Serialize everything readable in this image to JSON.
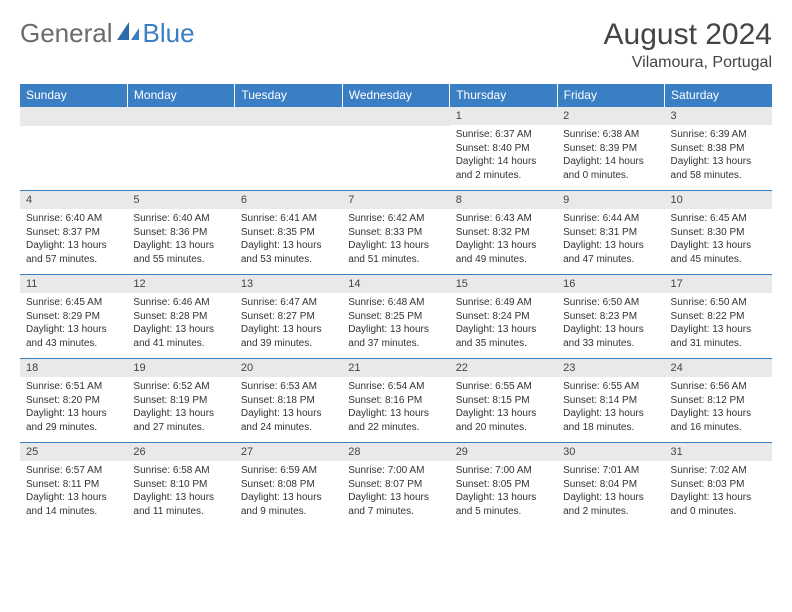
{
  "logo": {
    "general": "General",
    "blue": "Blue"
  },
  "title": "August 2024",
  "location": "Vilamoura, Portugal",
  "weekdays": [
    "Sunday",
    "Monday",
    "Tuesday",
    "Wednesday",
    "Thursday",
    "Friday",
    "Saturday"
  ],
  "colors": {
    "header_bg": "#3a7fc4",
    "header_fg": "#ffffff",
    "daynum_bg": "#e9e9e9"
  },
  "weeks": [
    [
      {
        "n": "",
        "sr": "",
        "ss": "",
        "dl": ""
      },
      {
        "n": "",
        "sr": "",
        "ss": "",
        "dl": ""
      },
      {
        "n": "",
        "sr": "",
        "ss": "",
        "dl": ""
      },
      {
        "n": "",
        "sr": "",
        "ss": "",
        "dl": ""
      },
      {
        "n": "1",
        "sr": "Sunrise: 6:37 AM",
        "ss": "Sunset: 8:40 PM",
        "dl": "Daylight: 14 hours and 2 minutes."
      },
      {
        "n": "2",
        "sr": "Sunrise: 6:38 AM",
        "ss": "Sunset: 8:39 PM",
        "dl": "Daylight: 14 hours and 0 minutes."
      },
      {
        "n": "3",
        "sr": "Sunrise: 6:39 AM",
        "ss": "Sunset: 8:38 PM",
        "dl": "Daylight: 13 hours and 58 minutes."
      }
    ],
    [
      {
        "n": "4",
        "sr": "Sunrise: 6:40 AM",
        "ss": "Sunset: 8:37 PM",
        "dl": "Daylight: 13 hours and 57 minutes."
      },
      {
        "n": "5",
        "sr": "Sunrise: 6:40 AM",
        "ss": "Sunset: 8:36 PM",
        "dl": "Daylight: 13 hours and 55 minutes."
      },
      {
        "n": "6",
        "sr": "Sunrise: 6:41 AM",
        "ss": "Sunset: 8:35 PM",
        "dl": "Daylight: 13 hours and 53 minutes."
      },
      {
        "n": "7",
        "sr": "Sunrise: 6:42 AM",
        "ss": "Sunset: 8:33 PM",
        "dl": "Daylight: 13 hours and 51 minutes."
      },
      {
        "n": "8",
        "sr": "Sunrise: 6:43 AM",
        "ss": "Sunset: 8:32 PM",
        "dl": "Daylight: 13 hours and 49 minutes."
      },
      {
        "n": "9",
        "sr": "Sunrise: 6:44 AM",
        "ss": "Sunset: 8:31 PM",
        "dl": "Daylight: 13 hours and 47 minutes."
      },
      {
        "n": "10",
        "sr": "Sunrise: 6:45 AM",
        "ss": "Sunset: 8:30 PM",
        "dl": "Daylight: 13 hours and 45 minutes."
      }
    ],
    [
      {
        "n": "11",
        "sr": "Sunrise: 6:45 AM",
        "ss": "Sunset: 8:29 PM",
        "dl": "Daylight: 13 hours and 43 minutes."
      },
      {
        "n": "12",
        "sr": "Sunrise: 6:46 AM",
        "ss": "Sunset: 8:28 PM",
        "dl": "Daylight: 13 hours and 41 minutes."
      },
      {
        "n": "13",
        "sr": "Sunrise: 6:47 AM",
        "ss": "Sunset: 8:27 PM",
        "dl": "Daylight: 13 hours and 39 minutes."
      },
      {
        "n": "14",
        "sr": "Sunrise: 6:48 AM",
        "ss": "Sunset: 8:25 PM",
        "dl": "Daylight: 13 hours and 37 minutes."
      },
      {
        "n": "15",
        "sr": "Sunrise: 6:49 AM",
        "ss": "Sunset: 8:24 PM",
        "dl": "Daylight: 13 hours and 35 minutes."
      },
      {
        "n": "16",
        "sr": "Sunrise: 6:50 AM",
        "ss": "Sunset: 8:23 PM",
        "dl": "Daylight: 13 hours and 33 minutes."
      },
      {
        "n": "17",
        "sr": "Sunrise: 6:50 AM",
        "ss": "Sunset: 8:22 PM",
        "dl": "Daylight: 13 hours and 31 minutes."
      }
    ],
    [
      {
        "n": "18",
        "sr": "Sunrise: 6:51 AM",
        "ss": "Sunset: 8:20 PM",
        "dl": "Daylight: 13 hours and 29 minutes."
      },
      {
        "n": "19",
        "sr": "Sunrise: 6:52 AM",
        "ss": "Sunset: 8:19 PM",
        "dl": "Daylight: 13 hours and 27 minutes."
      },
      {
        "n": "20",
        "sr": "Sunrise: 6:53 AM",
        "ss": "Sunset: 8:18 PM",
        "dl": "Daylight: 13 hours and 24 minutes."
      },
      {
        "n": "21",
        "sr": "Sunrise: 6:54 AM",
        "ss": "Sunset: 8:16 PM",
        "dl": "Daylight: 13 hours and 22 minutes."
      },
      {
        "n": "22",
        "sr": "Sunrise: 6:55 AM",
        "ss": "Sunset: 8:15 PM",
        "dl": "Daylight: 13 hours and 20 minutes."
      },
      {
        "n": "23",
        "sr": "Sunrise: 6:55 AM",
        "ss": "Sunset: 8:14 PM",
        "dl": "Daylight: 13 hours and 18 minutes."
      },
      {
        "n": "24",
        "sr": "Sunrise: 6:56 AM",
        "ss": "Sunset: 8:12 PM",
        "dl": "Daylight: 13 hours and 16 minutes."
      }
    ],
    [
      {
        "n": "25",
        "sr": "Sunrise: 6:57 AM",
        "ss": "Sunset: 8:11 PM",
        "dl": "Daylight: 13 hours and 14 minutes."
      },
      {
        "n": "26",
        "sr": "Sunrise: 6:58 AM",
        "ss": "Sunset: 8:10 PM",
        "dl": "Daylight: 13 hours and 11 minutes."
      },
      {
        "n": "27",
        "sr": "Sunrise: 6:59 AM",
        "ss": "Sunset: 8:08 PM",
        "dl": "Daylight: 13 hours and 9 minutes."
      },
      {
        "n": "28",
        "sr": "Sunrise: 7:00 AM",
        "ss": "Sunset: 8:07 PM",
        "dl": "Daylight: 13 hours and 7 minutes."
      },
      {
        "n": "29",
        "sr": "Sunrise: 7:00 AM",
        "ss": "Sunset: 8:05 PM",
        "dl": "Daylight: 13 hours and 5 minutes."
      },
      {
        "n": "30",
        "sr": "Sunrise: 7:01 AM",
        "ss": "Sunset: 8:04 PM",
        "dl": "Daylight: 13 hours and 2 minutes."
      },
      {
        "n": "31",
        "sr": "Sunrise: 7:02 AM",
        "ss": "Sunset: 8:03 PM",
        "dl": "Daylight: 13 hours and 0 minutes."
      }
    ]
  ]
}
